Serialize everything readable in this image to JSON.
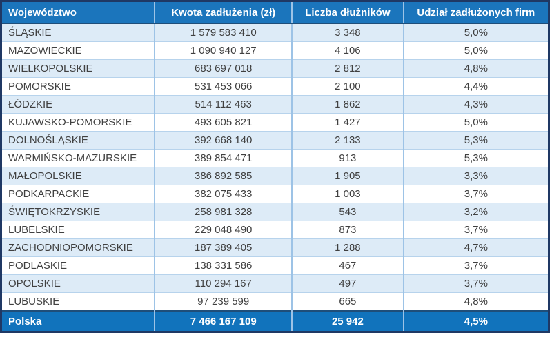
{
  "chart_data": {
    "type": "table",
    "columns": [
      "Województwo",
      "Kwota zadłużenia (zł)",
      "Liczba dłużników",
      "Udział zadłużonych firm"
    ],
    "rows": [
      [
        "ŚLĄSKIE",
        "1 579 583 410",
        "3 348",
        "5,0%"
      ],
      [
        "MAZOWIECKIE",
        "1 090 940 127",
        "4 106",
        "5,0%"
      ],
      [
        "WIELKOPOLSKIE",
        "683 697 018",
        "2 812",
        "4,8%"
      ],
      [
        "POMORSKIE",
        "531 453 066",
        "2 100",
        "4,4%"
      ],
      [
        "ŁÓDZKIE",
        "514 112 463",
        "1 862",
        "4,3%"
      ],
      [
        "KUJAWSKO-POMORSKIE",
        "493 605 821",
        "1 427",
        "5,0%"
      ],
      [
        "DOLNOŚLĄSKIE",
        "392 668 140",
        "2 133",
        "5,3%"
      ],
      [
        "WARMIŃSKO-MAZURSKIE",
        "389 854 471",
        "913",
        "5,3%"
      ],
      [
        "MAŁOPOLSKIE",
        "386 892 585",
        "1 905",
        "3,3%"
      ],
      [
        "PODKARPACKIE",
        "382 075 433",
        "1 003",
        "3,7%"
      ],
      [
        "ŚWIĘTOKRZYSKIE",
        "258 981 328",
        "543",
        "3,2%"
      ],
      [
        "LUBELSKIE",
        "229 048 490",
        "873",
        "3,7%"
      ],
      [
        "ZACHODNIOPOMORSKIE",
        "187 389 405",
        "1 288",
        "4,7%"
      ],
      [
        "PODLASKIE",
        "138 331 586",
        "467",
        "3,7%"
      ],
      [
        "OPOLSKIE",
        "110 294 167",
        "497",
        "3,7%"
      ],
      [
        "LUBUSKIE",
        "97 239 599",
        "665",
        "4,8%"
      ]
    ],
    "footer": [
      "Polska",
      "7 466 167 109",
      "25 942",
      "4,5%"
    ]
  },
  "colors": {
    "header_bg": "#1B75BC",
    "footer_bg": "#1173BC",
    "stripe_bg": "#DDEBF7",
    "grid_v": "#9DC3E6",
    "grid_h": "#B7D3EC",
    "accent_dark": "#1F4E79",
    "outer_border": "#1F3864",
    "text_dark": "#404040"
  }
}
